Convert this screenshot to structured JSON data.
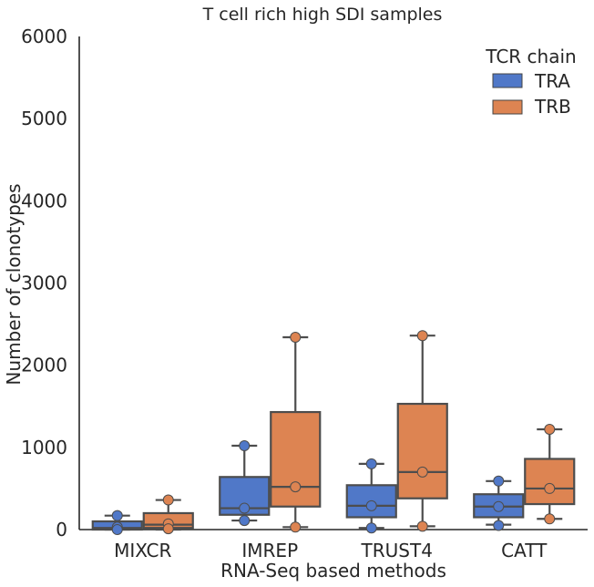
{
  "chart_data": {
    "type": "box",
    "title": "T cell rich high SDI samples",
    "xlabel": "RNA-Seq based methods",
    "ylabel": "Number of clonotypes",
    "ylim": [
      0,
      6000
    ],
    "yticks": [
      0,
      1000,
      2000,
      3000,
      4000,
      5000,
      6000
    ],
    "categories": [
      "MIXCR",
      "IMREP",
      "TRUST4",
      "CATT"
    ],
    "legend": {
      "title": "TCR chain",
      "placement": "top-right"
    },
    "grid": false,
    "series": [
      {
        "name": "TRA",
        "color": "#4c72b0",
        "fill": "#5078c8",
        "boxes": [
          {
            "whisker_low": 0,
            "q1": 0,
            "median": 20,
            "q3": 100,
            "whisker_high": 170
          },
          {
            "whisker_low": 110,
            "q1": 180,
            "median": 260,
            "q3": 640,
            "whisker_high": 1020
          },
          {
            "whisker_low": 20,
            "q1": 150,
            "median": 290,
            "q3": 540,
            "whisker_high": 800
          },
          {
            "whisker_low": 60,
            "q1": 150,
            "median": 280,
            "q3": 430,
            "whisker_high": 590
          }
        ],
        "points": [
          [
            170,
            30,
            0
          ],
          [
            1020,
            260,
            110
          ],
          [
            800,
            290,
            20
          ],
          [
            590,
            280,
            50
          ]
        ]
      },
      {
        "name": "TRB",
        "color": "#dd8452",
        "fill": "#dd8452",
        "boxes": [
          {
            "whisker_low": 0,
            "q1": 20,
            "median": 60,
            "q3": 200,
            "whisker_high": 360
          },
          {
            "whisker_low": 30,
            "q1": 280,
            "median": 520,
            "q3": 1430,
            "whisker_high": 2340
          },
          {
            "whisker_low": 40,
            "q1": 380,
            "median": 700,
            "q3": 1530,
            "whisker_high": 2360
          },
          {
            "whisker_low": 130,
            "q1": 310,
            "median": 500,
            "q3": 860,
            "whisker_high": 1220
          }
        ],
        "points": [
          [
            360,
            70,
            10
          ],
          [
            2340,
            520,
            30
          ],
          [
            2360,
            700,
            40
          ],
          [
            1220,
            500,
            130
          ]
        ]
      }
    ]
  }
}
